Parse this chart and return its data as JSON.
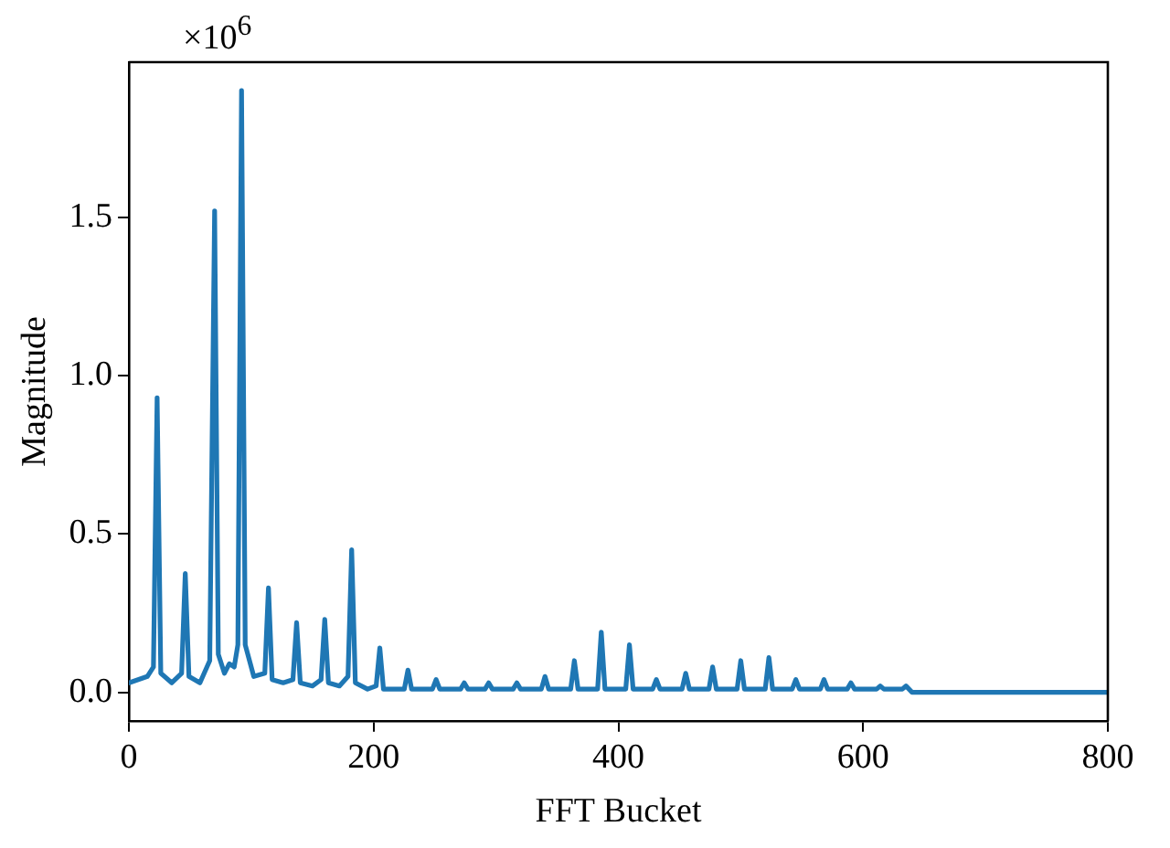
{
  "chart_data": {
    "type": "line",
    "xlabel": "FFT Bucket",
    "ylabel": "Magnitude",
    "annotations": [
      "×10$^{6}$"
    ],
    "xlim": [
      0,
      800
    ],
    "ylim": [
      -0.09,
      1.99
    ],
    "xticks": [
      0,
      200,
      400,
      600,
      800
    ],
    "yticks": [
      {
        "value": 0,
        "label": "0.0"
      },
      0.5,
      {
        "value": 1,
        "label": "1.0"
      },
      1.5
    ],
    "marker": "none",
    "line_style": "solid",
    "x": [
      0,
      15,
      20,
      23,
      26,
      35,
      43,
      46,
      49,
      58,
      66,
      70,
      73,
      78,
      82,
      86,
      89,
      92,
      95,
      102,
      111,
      114,
      117,
      126,
      134,
      137,
      140,
      150,
      157,
      160,
      163,
      172,
      179,
      182,
      185,
      195,
      202,
      205,
      208,
      218,
      225,
      228,
      231,
      248,
      251,
      254,
      271,
      274,
      277,
      291,
      294,
      297,
      314,
      317,
      320,
      337,
      340,
      343,
      361,
      364,
      367,
      383,
      386,
      389,
      406,
      409,
      412,
      428,
      431,
      434,
      452,
      455,
      458,
      474,
      477,
      480,
      497,
      500,
      503,
      520,
      523,
      526,
      542,
      545,
      548,
      565,
      568,
      571,
      587,
      590,
      593,
      611,
      614,
      617,
      632,
      635,
      640,
      700,
      800
    ],
    "series": [
      {
        "color": "#1f77b4",
        "values": [
          0.03,
          0.05,
          0.08,
          0.93,
          0.06,
          0.03,
          0.06,
          0.375,
          0.05,
          0.03,
          0.1,
          1.52,
          0.12,
          0.06,
          0.09,
          0.08,
          0.15,
          1.9,
          0.15,
          0.05,
          0.06,
          0.33,
          0.04,
          0.03,
          0.04,
          0.22,
          0.03,
          0.02,
          0.04,
          0.23,
          0.03,
          0.02,
          0.05,
          0.45,
          0.03,
          0.01,
          0.02,
          0.14,
          0.01,
          0.01,
          0.01,
          0.07,
          0.01,
          0.01,
          0.04,
          0.01,
          0.01,
          0.03,
          0.01,
          0.01,
          0.03,
          0.01,
          0.01,
          0.03,
          0.01,
          0.01,
          0.05,
          0.01,
          0.01,
          0.1,
          0.01,
          0.01,
          0.19,
          0.01,
          0.01,
          0.15,
          0.01,
          0.01,
          0.04,
          0.01,
          0.01,
          0.06,
          0.01,
          0.01,
          0.08,
          0.01,
          0.01,
          0.1,
          0.01,
          0.01,
          0.11,
          0.01,
          0.01,
          0.04,
          0.01,
          0.01,
          0.04,
          0.01,
          0.01,
          0.03,
          0.01,
          0.01,
          0.02,
          0.01,
          0.01,
          0.02,
          0.0,
          0.0,
          0.0
        ]
      }
    ]
  }
}
